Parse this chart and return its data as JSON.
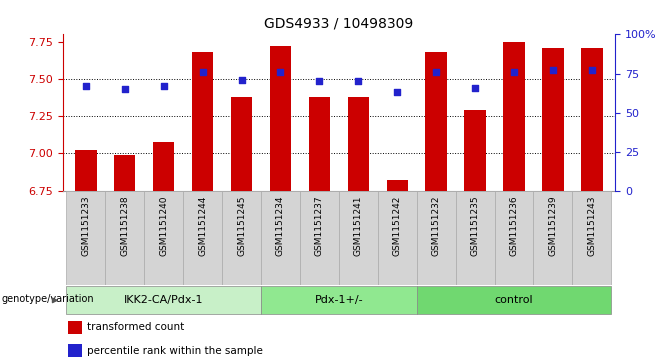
{
  "title": "GDS4933 / 10498309",
  "samples": [
    "GSM1151233",
    "GSM1151238",
    "GSM1151240",
    "GSM1151244",
    "GSM1151245",
    "GSM1151234",
    "GSM1151237",
    "GSM1151241",
    "GSM1151242",
    "GSM1151232",
    "GSM1151235",
    "GSM1151236",
    "GSM1151239",
    "GSM1151243"
  ],
  "bar_values": [
    7.02,
    6.99,
    7.08,
    7.68,
    7.38,
    7.72,
    7.38,
    7.38,
    6.82,
    7.68,
    7.29,
    7.75,
    7.71,
    7.71
  ],
  "dot_values": [
    67,
    65,
    67,
    76,
    71,
    76,
    70,
    70,
    63,
    76,
    66,
    76,
    77,
    77
  ],
  "groups": [
    {
      "label": "IKK2-CA/Pdx-1",
      "start": 0,
      "end": 5,
      "color": "#c8f0c8"
    },
    {
      "label": "Pdx-1+/-",
      "start": 5,
      "end": 9,
      "color": "#90e890"
    },
    {
      "label": "control",
      "start": 9,
      "end": 14,
      "color": "#70d870"
    }
  ],
  "bar_color": "#cc0000",
  "dot_color": "#2222cc",
  "ylim_left": [
    6.75,
    7.8
  ],
  "ylim_right": [
    0,
    100
  ],
  "yticks_left": [
    6.75,
    7.0,
    7.25,
    7.5,
    7.75
  ],
  "yticks_right": [
    0,
    25,
    50,
    75,
    100
  ],
  "ytick_labels_right": [
    "0",
    "25",
    "50",
    "75",
    "100%"
  ],
  "grid_values": [
    7.0,
    7.25,
    7.5
  ],
  "bar_width": 0.55,
  "legend_bar_label": "transformed count",
  "legend_dot_label": "percentile rank within the sample",
  "genotype_label": "genotype/variation",
  "cell_bg": "#d4d4d4",
  "cell_border": "#aaaaaa"
}
